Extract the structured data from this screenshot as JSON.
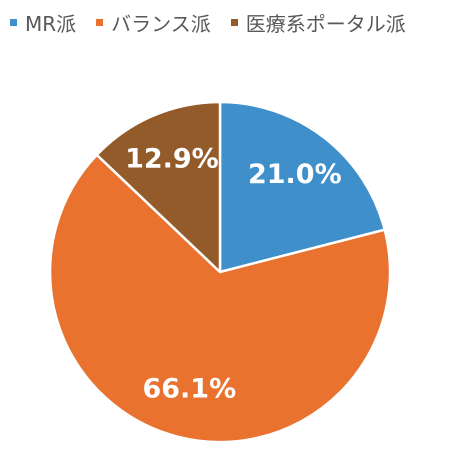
{
  "chart_data": {
    "type": "pie",
    "title": "",
    "legend_position": "top",
    "start_angle_deg": 0,
    "direction": "clockwise",
    "slices": [
      {
        "name": "MR派",
        "value": 21.0,
        "label": "21.0%",
        "color": "#3f8fcb"
      },
      {
        "name": "バランス派",
        "value": 66.1,
        "label": "66.1%",
        "color": "#e8722e"
      },
      {
        "name": "医療系ポータル派",
        "value": 12.9,
        "label": "12.9%",
        "color": "#935b2a"
      }
    ]
  }
}
